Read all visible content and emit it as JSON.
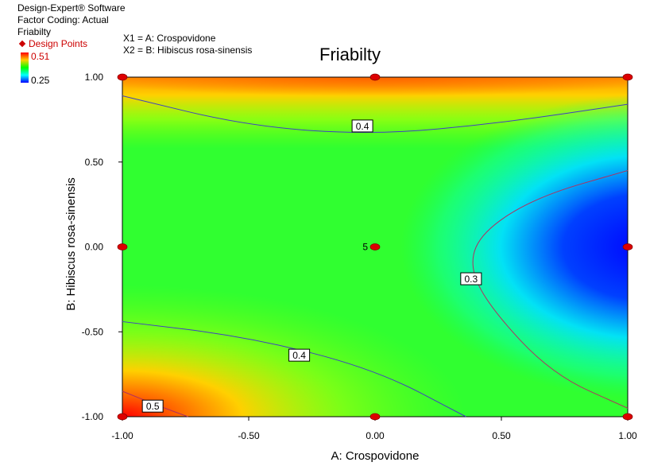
{
  "header": {
    "software": "Design-Expert® Software",
    "coding": "Factor Coding: Actual",
    "response": "Friabilty",
    "design_points": "Design Points",
    "legend_high": "0.51",
    "legend_low": "0.25",
    "x1_def": "X1 = A: Crospovidone",
    "x2_def": "X2 = B: Hibiscus rosa-sinensis"
  },
  "chart_data": {
    "type": "contour",
    "title": "Friabilty",
    "xlabel": "A: Crospovidone",
    "ylabel": "B: Hibiscus rosa-sinensis",
    "xlim": [
      -1.0,
      1.0
    ],
    "ylim": [
      -1.0,
      1.0
    ],
    "x_ticks": [
      "-1.00",
      "-0.50",
      "0.00",
      "0.50",
      "1.00"
    ],
    "y_ticks": [
      "1.00",
      "0.50",
      "0.00",
      "-0.50",
      "-1.00"
    ],
    "colorscale": {
      "min": 0.25,
      "max": 0.51,
      "colors": [
        "#0000ff",
        "#00ffff",
        "#00ff00",
        "#ffd000",
        "#ff0000"
      ]
    },
    "design_points": [
      {
        "x": -1,
        "y": 1
      },
      {
        "x": 0,
        "y": 1
      },
      {
        "x": 1,
        "y": 1
      },
      {
        "x": -1,
        "y": 0
      },
      {
        "x": 0,
        "y": 0,
        "label": "5"
      },
      {
        "x": 1,
        "y": 0
      },
      {
        "x": -1,
        "y": -1
      },
      {
        "x": 0,
        "y": -1
      },
      {
        "x": 1,
        "y": -1
      }
    ],
    "contours": [
      {
        "level": "0.4",
        "color": "#4040c0",
        "points": [
          [
            -1.0,
            0.89
          ],
          [
            -0.5,
            0.71
          ],
          [
            0.0,
            0.66
          ],
          [
            0.5,
            0.73
          ],
          [
            1.0,
            0.84
          ]
        ],
        "label_at": [
          -0.05,
          0.71
        ]
      },
      {
        "level": "0.4",
        "color": "#4040c0",
        "points": [
          [
            -1.0,
            -0.44
          ],
          [
            -0.5,
            -0.53
          ],
          [
            0.0,
            -0.72
          ],
          [
            0.36,
            -1.0
          ]
        ],
        "label_at": [
          -0.3,
          -0.64
        ]
      },
      {
        "level": "0.3",
        "color": "#b03060",
        "points": [
          [
            1.0,
            0.45
          ],
          [
            0.65,
            0.3
          ],
          [
            0.43,
            0.1
          ],
          [
            0.37,
            -0.1
          ],
          [
            0.45,
            -0.35
          ],
          [
            0.7,
            -0.75
          ],
          [
            1.0,
            -0.95
          ]
        ],
        "label_at": [
          0.38,
          -0.19
        ]
      },
      {
        "level": "0.5",
        "color": "#b03060",
        "points": [
          [
            -1.0,
            -0.85
          ],
          [
            -0.85,
            -0.94
          ],
          [
            -0.74,
            -1.0
          ]
        ],
        "label_at": [
          -0.88,
          -0.94
        ]
      }
    ]
  }
}
